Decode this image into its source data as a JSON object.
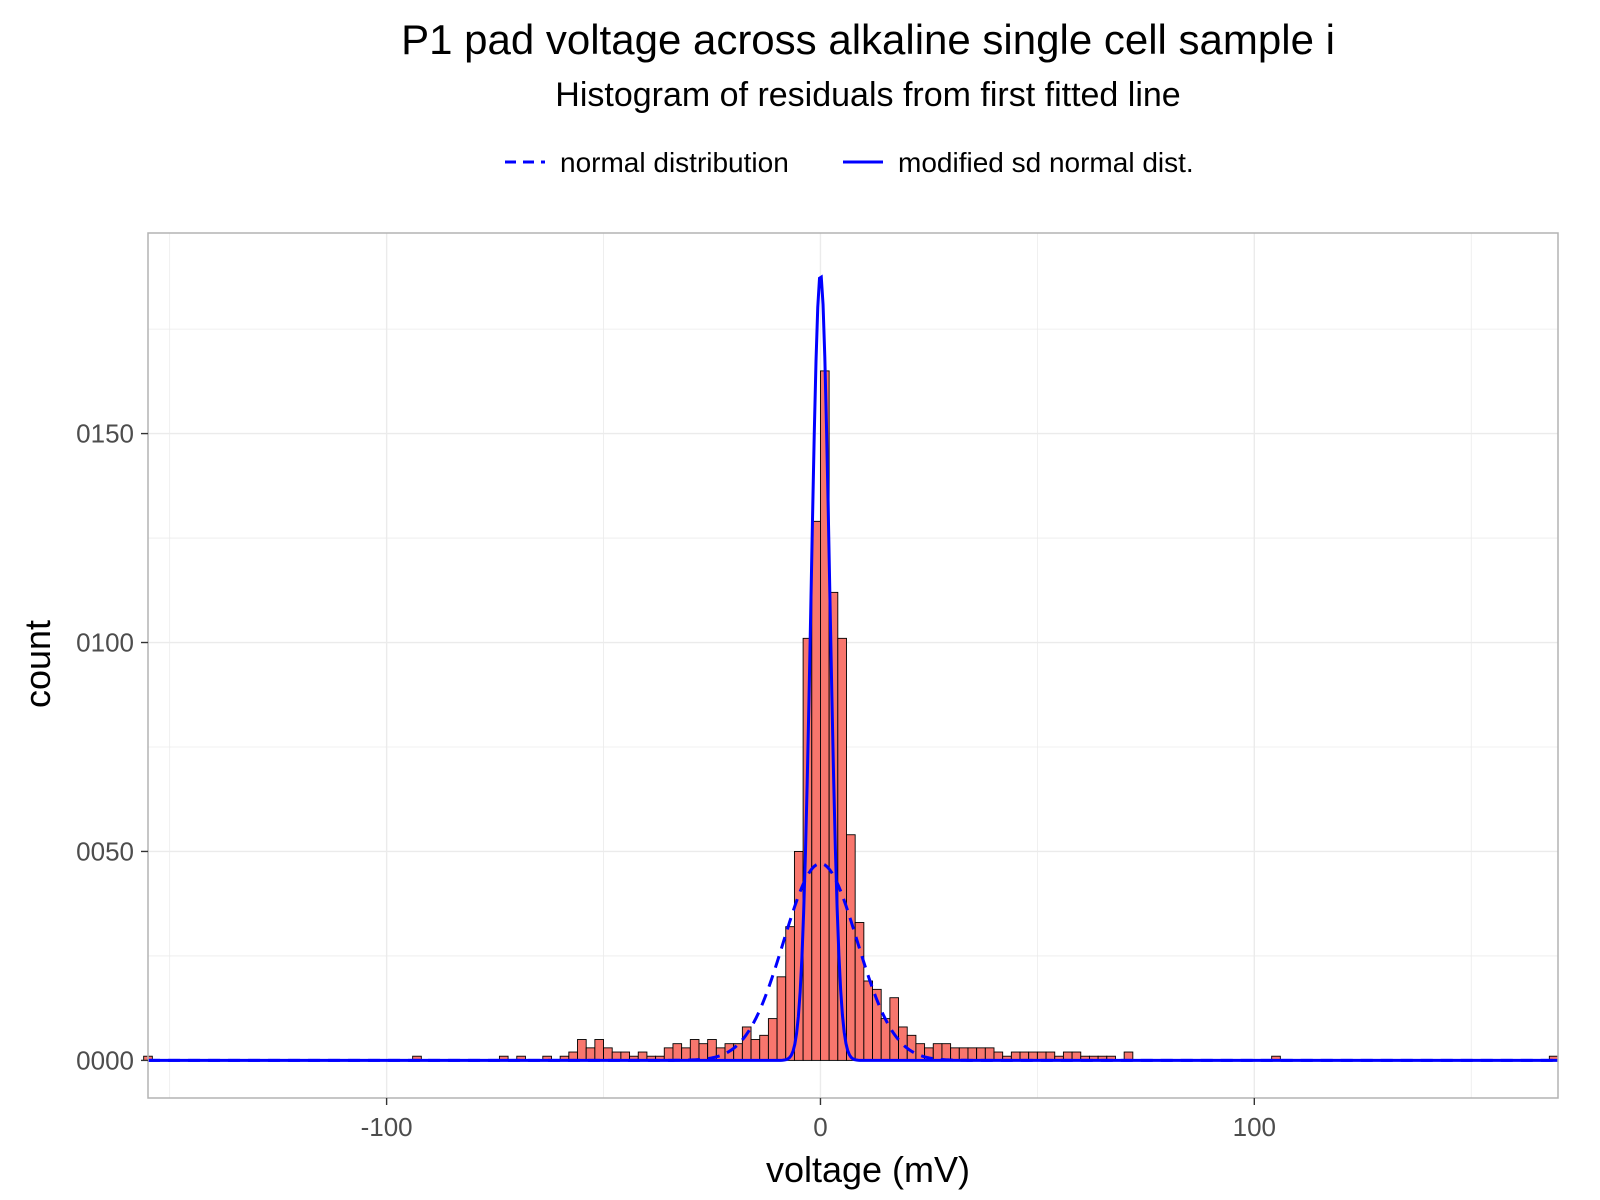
{
  "chart_data": {
    "type": "bar",
    "title": "P1 pad voltage across alkaline single cell sample i",
    "subtitle": "Histogram of residuals from first fitted line",
    "xlabel": "voltage (mV)",
    "ylabel": "count",
    "xlim": [
      -155,
      170
    ],
    "ylim": [
      -0.009,
      0.198
    ],
    "x_ticks": [
      -100,
      0,
      100
    ],
    "x_tick_labels": [
      "-100",
      "0",
      "100"
    ],
    "y_ticks": [
      0,
      0.05,
      0.1,
      0.15
    ],
    "y_tick_labels": [
      "0000",
      "0050",
      "0100",
      "0150"
    ],
    "grid": true,
    "legend_position": "top",
    "bin_width": 2,
    "bar_color": "#f8766d",
    "bars": [
      {
        "x": -155,
        "count": 0.001
      },
      {
        "x": -93,
        "count": 0.001
      },
      {
        "x": -73,
        "count": 0.001
      },
      {
        "x": -69,
        "count": 0.001
      },
      {
        "x": -63,
        "count": 0.001
      },
      {
        "x": -59,
        "count": 0.001
      },
      {
        "x": -57,
        "count": 0.002
      },
      {
        "x": -55,
        "count": 0.005
      },
      {
        "x": -53,
        "count": 0.003
      },
      {
        "x": -51,
        "count": 0.005
      },
      {
        "x": -49,
        "count": 0.003
      },
      {
        "x": -47,
        "count": 0.002
      },
      {
        "x": -45,
        "count": 0.002
      },
      {
        "x": -43,
        "count": 0.001
      },
      {
        "x": -41,
        "count": 0.002
      },
      {
        "x": -39,
        "count": 0.001
      },
      {
        "x": -37,
        "count": 0.001
      },
      {
        "x": -35,
        "count": 0.003
      },
      {
        "x": -33,
        "count": 0.004
      },
      {
        "x": -31,
        "count": 0.003
      },
      {
        "x": -29,
        "count": 0.005
      },
      {
        "x": -27,
        "count": 0.004
      },
      {
        "x": -25,
        "count": 0.005
      },
      {
        "x": -23,
        "count": 0.003
      },
      {
        "x": -21,
        "count": 0.004
      },
      {
        "x": -19,
        "count": 0.004
      },
      {
        "x": -17,
        "count": 0.008
      },
      {
        "x": -15,
        "count": 0.005
      },
      {
        "x": -13,
        "count": 0.006
      },
      {
        "x": -11,
        "count": 0.01
      },
      {
        "x": -9,
        "count": 0.02
      },
      {
        "x": -7,
        "count": 0.032
      },
      {
        "x": -5,
        "count": 0.05
      },
      {
        "x": -3,
        "count": 0.101
      },
      {
        "x": -1,
        "count": 0.129
      },
      {
        "x": 1,
        "count": 0.165
      },
      {
        "x": 3,
        "count": 0.112
      },
      {
        "x": 5,
        "count": 0.101
      },
      {
        "x": 7,
        "count": 0.054
      },
      {
        "x": 9,
        "count": 0.033
      },
      {
        "x": 11,
        "count": 0.019
      },
      {
        "x": 13,
        "count": 0.017
      },
      {
        "x": 15,
        "count": 0.01
      },
      {
        "x": 17,
        "count": 0.015
      },
      {
        "x": 19,
        "count": 0.008
      },
      {
        "x": 21,
        "count": 0.006
      },
      {
        "x": 23,
        "count": 0.004
      },
      {
        "x": 25,
        "count": 0.003
      },
      {
        "x": 27,
        "count": 0.004
      },
      {
        "x": 29,
        "count": 0.004
      },
      {
        "x": 31,
        "count": 0.003
      },
      {
        "x": 33,
        "count": 0.003
      },
      {
        "x": 35,
        "count": 0.003
      },
      {
        "x": 37,
        "count": 0.003
      },
      {
        "x": 39,
        "count": 0.003
      },
      {
        "x": 41,
        "count": 0.002
      },
      {
        "x": 43,
        "count": 0.001
      },
      {
        "x": 45,
        "count": 0.002
      },
      {
        "x": 47,
        "count": 0.002
      },
      {
        "x": 49,
        "count": 0.002
      },
      {
        "x": 51,
        "count": 0.002
      },
      {
        "x": 53,
        "count": 0.002
      },
      {
        "x": 55,
        "count": 0.001
      },
      {
        "x": 57,
        "count": 0.002
      },
      {
        "x": 59,
        "count": 0.002
      },
      {
        "x": 61,
        "count": 0.001
      },
      {
        "x": 63,
        "count": 0.001
      },
      {
        "x": 65,
        "count": 0.001
      },
      {
        "x": 67,
        "count": 0.001
      },
      {
        "x": 71,
        "count": 0.002
      },
      {
        "x": 105,
        "count": 0.001
      },
      {
        "x": 169,
        "count": 0.001
      }
    ],
    "series": [
      {
        "name": "normal distribution",
        "kind": "normal",
        "mean": 0,
        "sd": 8.47,
        "line": "dashed",
        "color": "#0000ff"
      },
      {
        "name": "modified sd normal dist.",
        "kind": "normal",
        "mean": 0,
        "sd": 2.12,
        "line": "solid",
        "color": "#0000ff"
      }
    ],
    "curve_range": [
      -155,
      170
    ]
  }
}
